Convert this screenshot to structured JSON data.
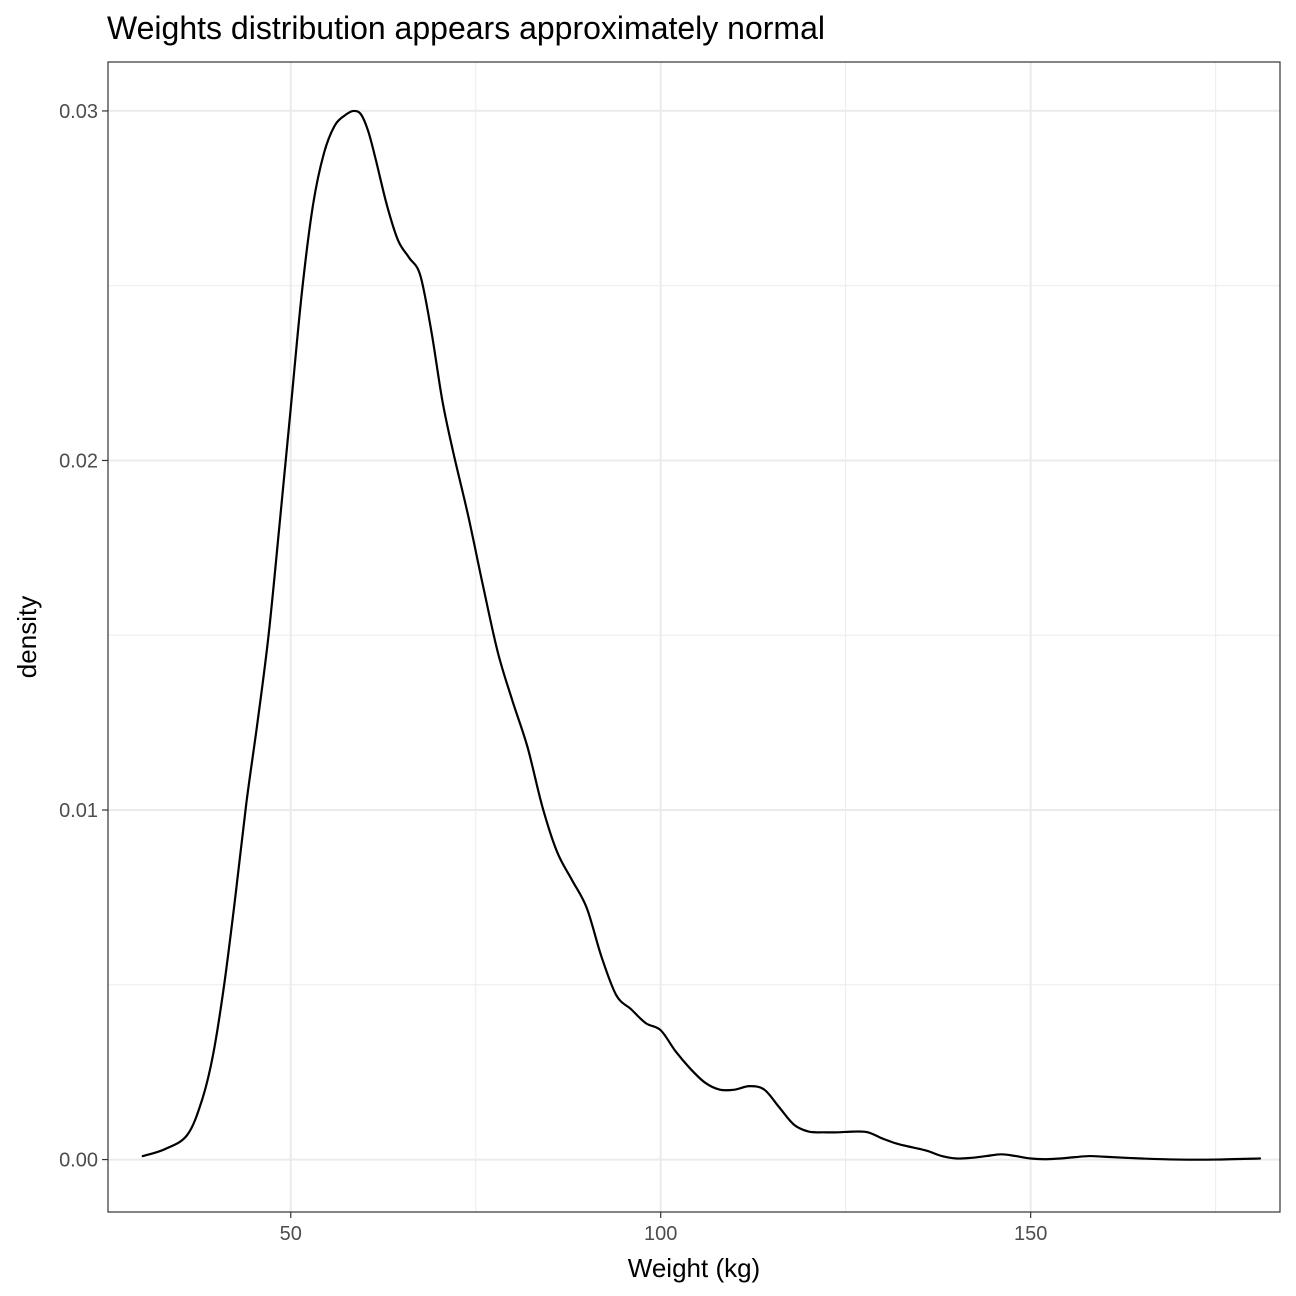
{
  "chart_data": {
    "type": "line",
    "title": "Weights distribution appears approximately normal",
    "xlabel": "Weight (kg)",
    "ylabel": "density",
    "xlim": [
      25.3,
      183.7
    ],
    "ylim": [
      -0.0015,
      0.0314
    ],
    "x_ticks": [
      50,
      100,
      150
    ],
    "x_tick_labels": [
      "50",
      "100",
      "150"
    ],
    "x_minor_ticks": [
      25,
      75,
      125,
      175
    ],
    "y_ticks": [
      0.0,
      0.01,
      0.02,
      0.03
    ],
    "y_tick_labels": [
      "0.00",
      "0.01",
      "0.02",
      "0.03"
    ],
    "y_minor_ticks": [
      0.005,
      0.015,
      0.025
    ],
    "grid": true,
    "legend": "none",
    "series": [
      {
        "x": [
          30,
          33,
          36,
          38,
          39.5,
          41,
          42.5,
          44,
          45.5,
          47,
          48.5,
          50,
          51.5,
          53,
          54.5,
          56,
          57.5,
          58.5,
          59.5,
          60.5,
          61.5,
          63,
          64.5,
          66,
          67.5,
          69,
          70.5,
          72,
          74,
          76,
          78,
          80,
          82,
          84,
          86,
          88,
          90,
          92,
          94,
          96,
          98,
          100,
          102,
          104,
          106,
          108,
          110,
          112,
          114,
          116,
          118,
          120,
          122,
          124,
          126,
          128,
          130,
          132,
          134,
          136,
          138,
          140,
          142,
          144,
          146,
          148,
          150,
          152,
          154,
          156,
          158,
          160,
          165,
          170,
          175,
          181
        ],
        "y": [
          0.0001,
          0.0003,
          0.0007,
          0.0017,
          0.003,
          0.005,
          0.0075,
          0.0102,
          0.0125,
          0.015,
          0.0182,
          0.0215,
          0.0248,
          0.0273,
          0.0288,
          0.0296,
          0.0299,
          0.03,
          0.0299,
          0.0294,
          0.0286,
          0.0273,
          0.0263,
          0.0258,
          0.0253,
          0.0237,
          0.0217,
          0.0202,
          0.0184,
          0.0164,
          0.0145,
          0.0131,
          0.0118,
          0.0101,
          0.0088,
          0.008,
          0.0072,
          0.0058,
          0.0047,
          0.0043,
          0.0039,
          0.0037,
          0.0031,
          0.0026,
          0.0022,
          0.002,
          0.002,
          0.0021,
          0.002,
          0.0015,
          0.001,
          0.0008,
          0.00078,
          0.00078,
          0.0008,
          0.00078,
          0.0006,
          0.00045,
          0.00035,
          0.00025,
          0.0001,
          3e-05,
          5e-05,
          0.0001,
          0.00015,
          0.0001,
          3e-05,
          1e-05,
          3e-05,
          7e-05,
          0.0001,
          8e-05,
          3e-05,
          0.0,
          0.0,
          3e-05
        ]
      }
    ]
  },
  "colors": {
    "panel_background": "#ffffff",
    "panel_border": "#333333",
    "grid_major": "#ebebeb",
    "grid_minor": "#ebebeb",
    "line": "#000000",
    "tick_text": "#4d4d4d",
    "axis_text": "#000000"
  }
}
